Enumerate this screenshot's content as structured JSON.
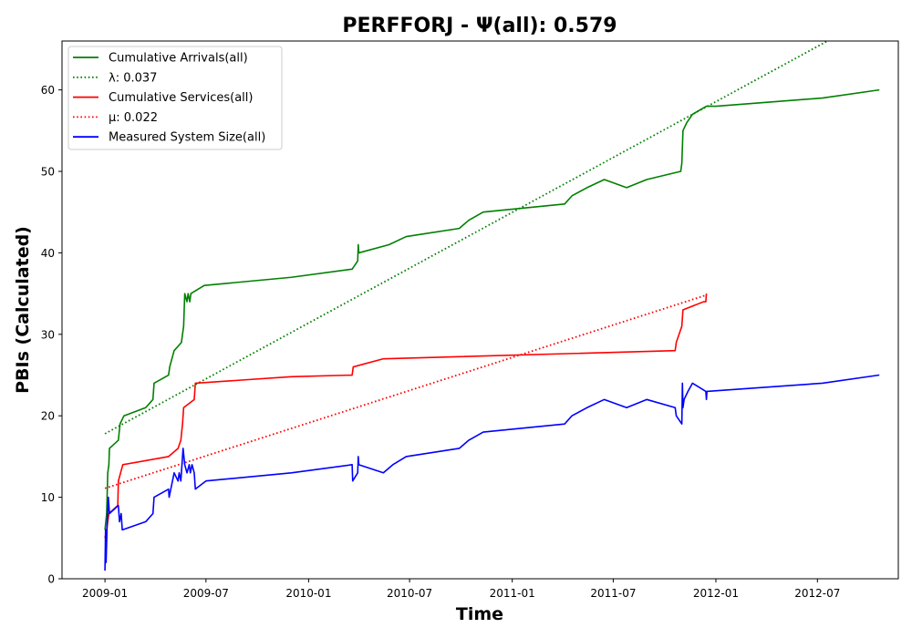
{
  "chart_data": {
    "type": "line",
    "title": "PERFFORJ -  Ψ(all): 0.579",
    "xlabel": "Time",
    "ylabel": "PBIs (Calculated)",
    "xlim": [
      "2008-10-16",
      "2012-11-23"
    ],
    "ylim": [
      0,
      66
    ],
    "x_ticks": [
      "2009-01",
      "2009-07",
      "2010-01",
      "2010-07",
      "2011-01",
      "2011-07",
      "2012-01",
      "2012-07"
    ],
    "y_ticks": [
      0,
      10,
      20,
      30,
      40,
      50,
      60
    ],
    "grid": false,
    "legend_position": "upper-left",
    "colors": {
      "arrivals": "#008000",
      "services": "#ff0000",
      "system_size": "#0000ff",
      "axes": "#000000",
      "legend_border": "#cccccc"
    },
    "series": [
      {
        "name": "Cumulative Arrivals(all)",
        "style": "solid",
        "color": "#008000",
        "points": [
          [
            "2009-01-01",
            6
          ],
          [
            "2009-01-04",
            8
          ],
          [
            "2009-01-06",
            13
          ],
          [
            "2009-01-08",
            14
          ],
          [
            "2009-01-09",
            16
          ],
          [
            "2009-01-25",
            17
          ],
          [
            "2009-01-28",
            19
          ],
          [
            "2009-02-04",
            20
          ],
          [
            "2009-03-15",
            21
          ],
          [
            "2009-03-28",
            22
          ],
          [
            "2009-03-30",
            24
          ],
          [
            "2009-04-25",
            25
          ],
          [
            "2009-04-27",
            26
          ],
          [
            "2009-05-05",
            28
          ],
          [
            "2009-05-18",
            29
          ],
          [
            "2009-05-22",
            31
          ],
          [
            "2009-05-24",
            35
          ],
          [
            "2009-05-28",
            34
          ],
          [
            "2009-05-30",
            35
          ],
          [
            "2009-06-02",
            34
          ],
          [
            "2009-06-04",
            35
          ],
          [
            "2009-06-28",
            36
          ],
          [
            "2009-12-01",
            37
          ],
          [
            "2010-03-20",
            38
          ],
          [
            "2010-03-30",
            39
          ],
          [
            "2010-03-31",
            41
          ],
          [
            "2010-04-01",
            40
          ],
          [
            "2010-05-25",
            41
          ],
          [
            "2010-06-25",
            42
          ],
          [
            "2010-09-28",
            43
          ],
          [
            "2010-10-15",
            44
          ],
          [
            "2010-11-10",
            45
          ],
          [
            "2011-04-05",
            46
          ],
          [
            "2011-04-18",
            47
          ],
          [
            "2011-05-15",
            48
          ],
          [
            "2011-06-15",
            49
          ],
          [
            "2011-07-25",
            48
          ],
          [
            "2011-08-30",
            49
          ],
          [
            "2011-10-30",
            50
          ],
          [
            "2011-11-01",
            51
          ],
          [
            "2011-11-03",
            55
          ],
          [
            "2011-11-10",
            56
          ],
          [
            "2011-11-20",
            57
          ],
          [
            "2011-12-15",
            58
          ],
          [
            "2012-01-01",
            58
          ],
          [
            "2012-07-10",
            59
          ],
          [
            "2012-10-20",
            60
          ]
        ]
      },
      {
        "name": "λ: 0.037",
        "style": "dotted",
        "color": "#008000",
        "points": [
          [
            "2009-01-01",
            17.8
          ],
          [
            "2012-07-19",
            66
          ]
        ]
      },
      {
        "name": "Cumulative Services(all)",
        "style": "solid",
        "color": "#ff0000",
        "points": [
          [
            "2009-01-01",
            5
          ],
          [
            "2009-01-04",
            6
          ],
          [
            "2009-01-06",
            7
          ],
          [
            "2009-01-08",
            8
          ],
          [
            "2009-01-24",
            9
          ],
          [
            "2009-01-25",
            12
          ],
          [
            "2009-01-29",
            13
          ],
          [
            "2009-02-02",
            14
          ],
          [
            "2009-04-25",
            15
          ],
          [
            "2009-05-12",
            16
          ],
          [
            "2009-05-17",
            17
          ],
          [
            "2009-05-20",
            19
          ],
          [
            "2009-05-22",
            21
          ],
          [
            "2009-06-10",
            22
          ],
          [
            "2009-06-12",
            24
          ],
          [
            "2009-12-01",
            24.8
          ],
          [
            "2010-03-20",
            25
          ],
          [
            "2010-03-22",
            26
          ],
          [
            "2010-05-15",
            27
          ],
          [
            "2011-10-20",
            28
          ],
          [
            "2011-10-22",
            29
          ],
          [
            "2011-11-01",
            31
          ],
          [
            "2011-11-03",
            33
          ],
          [
            "2011-12-10",
            34
          ],
          [
            "2011-12-14",
            34
          ],
          [
            "2011-12-15",
            35
          ]
        ]
      },
      {
        "name": "μ: 0.022",
        "style": "dotted",
        "color": "#ff0000",
        "points": [
          [
            "2009-01-01",
            11.1
          ],
          [
            "2011-12-14",
            34.8
          ]
        ]
      },
      {
        "name": "Measured System Size(all)",
        "style": "solid",
        "color": "#0000ff",
        "points": [
          [
            "2009-01-01",
            1
          ],
          [
            "2009-01-02",
            6
          ],
          [
            "2009-01-03",
            2
          ],
          [
            "2009-01-05",
            7
          ],
          [
            "2009-01-07",
            10
          ],
          [
            "2009-01-09",
            8
          ],
          [
            "2009-01-25",
            9
          ],
          [
            "2009-01-27",
            7
          ],
          [
            "2009-01-30",
            8
          ],
          [
            "2009-02-01",
            6
          ],
          [
            "2009-03-15",
            7
          ],
          [
            "2009-03-28",
            8
          ],
          [
            "2009-03-30",
            10
          ],
          [
            "2009-04-25",
            11
          ],
          [
            "2009-04-26",
            10
          ],
          [
            "2009-05-05",
            13
          ],
          [
            "2009-05-12",
            12
          ],
          [
            "2009-05-14",
            13
          ],
          [
            "2009-05-17",
            12
          ],
          [
            "2009-05-19",
            14
          ],
          [
            "2009-05-21",
            16
          ],
          [
            "2009-05-24",
            14
          ],
          [
            "2009-05-28",
            13
          ],
          [
            "2009-06-01",
            14
          ],
          [
            "2009-06-03",
            13
          ],
          [
            "2009-06-06",
            14
          ],
          [
            "2009-06-10",
            13
          ],
          [
            "2009-06-12",
            11
          ],
          [
            "2009-07-01",
            12
          ],
          [
            "2009-12-01",
            13
          ],
          [
            "2010-03-20",
            14
          ],
          [
            "2010-03-21",
            12
          ],
          [
            "2010-03-30",
            13
          ],
          [
            "2010-03-31",
            15
          ],
          [
            "2010-04-01",
            14
          ],
          [
            "2010-05-15",
            13
          ],
          [
            "2010-06-01",
            14
          ],
          [
            "2010-06-25",
            15
          ],
          [
            "2010-09-28",
            16
          ],
          [
            "2010-10-15",
            17
          ],
          [
            "2010-11-10",
            18
          ],
          [
            "2011-04-05",
            19
          ],
          [
            "2011-04-18",
            20
          ],
          [
            "2011-05-15",
            21
          ],
          [
            "2011-06-15",
            22
          ],
          [
            "2011-07-25",
            21
          ],
          [
            "2011-08-30",
            22
          ],
          [
            "2011-10-20",
            21
          ],
          [
            "2011-10-22",
            20
          ],
          [
            "2011-11-01",
            19
          ],
          [
            "2011-11-02",
            24
          ],
          [
            "2011-11-03",
            21
          ],
          [
            "2011-11-05",
            22
          ],
          [
            "2011-11-12",
            23
          ],
          [
            "2011-11-20",
            24
          ],
          [
            "2011-12-14",
            23
          ],
          [
            "2011-12-15",
            22
          ],
          [
            "2011-12-16",
            23
          ],
          [
            "2012-07-10",
            24
          ],
          [
            "2012-10-20",
            25
          ]
        ]
      }
    ]
  }
}
